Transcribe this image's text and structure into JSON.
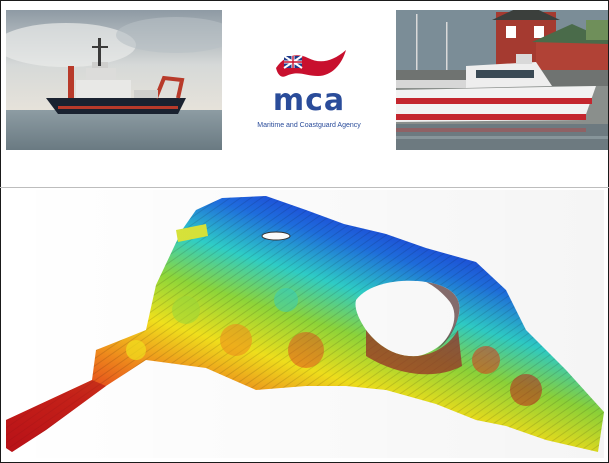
{
  "logo": {
    "wordmark": "mca",
    "caption": "Maritime and Coastguard Agency",
    "flag_color": "#c8102e",
    "text_color": "#2a4c9a"
  },
  "images": {
    "survey_vessel": "survey-vessel-photo",
    "pilot_boat": "pilot-boat-photo",
    "bathymetry": "multibeam-bathymetry-3d-render"
  },
  "colors": {
    "deep": "#1b1bd6",
    "mid": "#2fd0c9",
    "shallow_mid": "#f0e21c",
    "shallow": "#d61c1c"
  }
}
